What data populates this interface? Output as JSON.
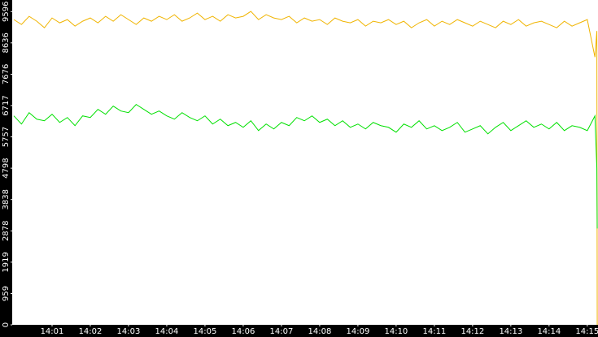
{
  "chart_data": {
    "type": "line",
    "x": [
      0,
      0.2,
      0.4,
      0.6,
      0.8,
      1,
      1.2,
      1.4,
      1.6,
      1.8,
      2,
      2.2,
      2.4,
      2.6,
      2.8,
      3,
      3.2,
      3.4,
      3.6,
      3.8,
      4,
      4.2,
      4.4,
      4.6,
      4.8,
      5,
      5.2,
      5.4,
      5.6,
      5.8,
      6,
      6.2,
      6.4,
      6.6,
      6.8,
      7,
      7.2,
      7.4,
      7.6,
      7.8,
      8,
      8.2,
      8.4,
      8.6,
      8.8,
      9,
      9.2,
      9.4,
      9.6,
      9.8,
      10,
      10.2,
      10.4,
      10.6,
      10.8,
      11,
      11.2,
      11.4,
      11.6,
      11.8,
      12,
      12.2,
      12.4,
      12.6,
      12.8,
      13,
      13.2,
      13.4,
      13.6,
      13.8,
      14,
      14.2,
      14.4,
      14.6,
      14.8,
      15,
      15.2,
      15.25,
      15.26
    ],
    "series": [
      {
        "color": "#f0b400",
        "values": [
          9350,
          9200,
          9450,
          9300,
          9100,
          9400,
          9250,
          9350,
          9150,
          9300,
          9400,
          9250,
          9450,
          9300,
          9500,
          9350,
          9200,
          9400,
          9300,
          9450,
          9350,
          9500,
          9300,
          9400,
          9550,
          9350,
          9450,
          9300,
          9500,
          9400,
          9450,
          9600,
          9350,
          9500,
          9400,
          9350,
          9450,
          9250,
          9400,
          9300,
          9350,
          9200,
          9400,
          9300,
          9250,
          9350,
          9150,
          9300,
          9250,
          9350,
          9200,
          9300,
          9100,
          9250,
          9350,
          9150,
          9300,
          9200,
          9350,
          9250,
          9150,
          9300,
          9200,
          9100,
          9300,
          9200,
          9350,
          9150,
          9250,
          9300,
          9200,
          9100,
          9300,
          9150,
          9250,
          9350,
          8200,
          9000,
          0
        ]
      },
      {
        "color": "#00e000",
        "values": [
          6400,
          6150,
          6500,
          6300,
          6250,
          6450,
          6200,
          6350,
          6100,
          6400,
          6350,
          6600,
          6450,
          6700,
          6550,
          6500,
          6750,
          6600,
          6450,
          6550,
          6400,
          6300,
          6500,
          6350,
          6250,
          6400,
          6150,
          6300,
          6100,
          6200,
          6050,
          6250,
          5950,
          6150,
          6000,
          6200,
          6100,
          6350,
          6250,
          6400,
          6200,
          6300,
          6100,
          6250,
          6050,
          6150,
          6000,
          6200,
          6100,
          6050,
          5900,
          6150,
          6050,
          6250,
          6000,
          6100,
          5950,
          6050,
          6200,
          5900,
          6000,
          6100,
          5850,
          6050,
          6200,
          5950,
          6100,
          6250,
          6050,
          6150,
          6000,
          6200,
          5950,
          6100,
          6050,
          5950,
          6400,
          4800,
          2950
        ]
      }
    ],
    "xlim": [
      0,
      15.28
    ],
    "xticks": [
      {
        "value": 1,
        "label": "14:01"
      },
      {
        "value": 2,
        "label": "14:02"
      },
      {
        "value": 3,
        "label": "14:03"
      },
      {
        "value": 4,
        "label": "14:04"
      },
      {
        "value": 5,
        "label": "14:05"
      },
      {
        "value": 6,
        "label": "14:06"
      },
      {
        "value": 7,
        "label": "14:07"
      },
      {
        "value": 8,
        "label": "14:08"
      },
      {
        "value": 9,
        "label": "14:09"
      },
      {
        "value": 10,
        "label": "14:10"
      },
      {
        "value": 11,
        "label": "14:11"
      },
      {
        "value": 12,
        "label": "14:12"
      },
      {
        "value": 13,
        "label": "14:13"
      },
      {
        "value": 14,
        "label": "14:14"
      },
      {
        "value": 15,
        "label": "14:15"
      }
    ],
    "ylim": [
      0,
      9950
    ],
    "yticks": [
      0,
      959,
      1919,
      2878,
      3838,
      4798,
      5757,
      6717,
      7676,
      8636,
      9596
    ]
  }
}
